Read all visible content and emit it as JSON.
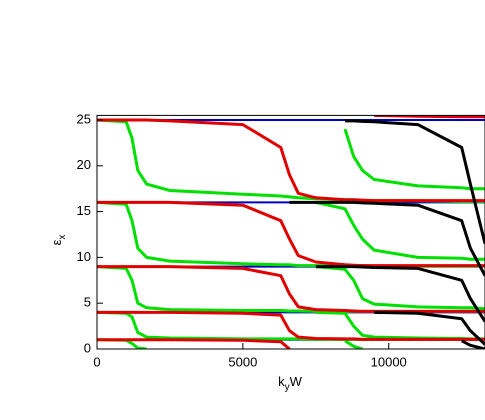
{
  "chart_data": {
    "type": "line",
    "x_label": {
      "parts": [
        "k",
        "y",
        "W"
      ]
    },
    "y_label": {
      "parts": [
        "ε",
        "x"
      ]
    },
    "xlim": [
      0,
      13300
    ],
    "ylim": [
      0,
      25.5
    ],
    "xticks": [
      0,
      5000,
      10000
    ],
    "yticks": [
      0,
      5,
      10,
      15,
      20,
      25
    ],
    "x": [
      0,
      1000,
      1200,
      1400,
      1700,
      2500,
      5000,
      6300,
      6600,
      6900,
      7500,
      8500,
      8800,
      9100,
      9500,
      11000,
      12500,
      12800,
      13300
    ],
    "series": [
      {
        "color": "#0000c0",
        "values": [
          25,
          25,
          25,
          25,
          25,
          25,
          25,
          25,
          25,
          25,
          25,
          25,
          25,
          25,
          25,
          25,
          25,
          25,
          25
        ]
      },
      {
        "color": "#0000c0",
        "values": [
          16,
          16,
          16,
          16,
          16,
          16,
          16,
          16,
          16,
          16,
          16,
          16,
          16,
          16,
          16,
          16,
          16,
          16,
          16
        ]
      },
      {
        "color": "#0000c0",
        "values": [
          9,
          9,
          9,
          9,
          9,
          9,
          9,
          9,
          9,
          9,
          9,
          9,
          9,
          9,
          9,
          9,
          9,
          9,
          9
        ]
      },
      {
        "color": "#0000c0",
        "values": [
          4,
          4,
          4,
          4,
          4,
          4,
          4,
          4,
          4,
          4,
          4,
          4,
          4,
          4,
          4,
          4,
          4,
          4,
          4
        ]
      },
      {
        "color": "#0000c0",
        "values": [
          1,
          1,
          1,
          1,
          1,
          1,
          1,
          1,
          1,
          1,
          1,
          1,
          1,
          1,
          1,
          1,
          1,
          1,
          1
        ]
      },
      {
        "color": "#00e000",
        "values": [
          25,
          24.8,
          23,
          19.5,
          18,
          17.3,
          16.9,
          16.7,
          16.6,
          16.5,
          16.4,
          16.3,
          16.3,
          16.2,
          16.2,
          16.2,
          16.1,
          16.1,
          16.1
        ]
      },
      {
        "color": "#00e000",
        "values": [
          16,
          15.8,
          14,
          11,
          10,
          9.6,
          9.3,
          9.2,
          9.2,
          9.1,
          9.1,
          9.1,
          9.1,
          9.1,
          9.05,
          9.05,
          9.05,
          9.05,
          9.05
        ]
      },
      {
        "color": "#00e000",
        "values": [
          9,
          8.8,
          7.5,
          5,
          4.5,
          4.3,
          4.2,
          4.2,
          4.15,
          4.15,
          4.1,
          4.1,
          4.1,
          4.1,
          4.1,
          4.1,
          4.1,
          4.1,
          4.1
        ]
      },
      {
        "color": "#00e000",
        "values": [
          4,
          3.9,
          3.5,
          1.8,
          1.3,
          1.2,
          1.1,
          1.1,
          1.1,
          1.1,
          1.05,
          1.05,
          1.05,
          1.05,
          1.05,
          1.05,
          1.05,
          1.05,
          1.05
        ]
      },
      {
        "color": "#00e000",
        "values": [
          1,
          0.95,
          0.6,
          0.1,
          0,
          null,
          null,
          null,
          null,
          null,
          null,
          null,
          null,
          null,
          null,
          null,
          null,
          null,
          null
        ]
      },
      {
        "color": "#00e000",
        "values": [
          null,
          null,
          null,
          null,
          null,
          null,
          null,
          null,
          null,
          null,
          null,
          24,
          21,
          19.5,
          18.5,
          17.8,
          17.6,
          17.5,
          17.5
        ]
      },
      {
        "color": "#00e000",
        "values": [
          null,
          null,
          null,
          null,
          null,
          null,
          null,
          null,
          null,
          null,
          16,
          15.3,
          13.5,
          12,
          10.8,
          10,
          9.9,
          9.8,
          9.8
        ]
      },
      {
        "color": "#00e000",
        "values": [
          null,
          null,
          null,
          null,
          null,
          null,
          null,
          null,
          null,
          null,
          9,
          8.7,
          7.5,
          5.5,
          4.9,
          4.6,
          4.5,
          4.5,
          4.4
        ]
      },
      {
        "color": "#00e000",
        "values": [
          null,
          null,
          null,
          null,
          null,
          null,
          null,
          null,
          null,
          null,
          4,
          3.9,
          2.5,
          1.5,
          1.3,
          1.2,
          1.15,
          1.1,
          1.1
        ]
      },
      {
        "color": "#00e000",
        "values": [
          null,
          null,
          null,
          null,
          null,
          null,
          null,
          null,
          null,
          null,
          null,
          0.9,
          0.3,
          0,
          null,
          null,
          null,
          null,
          null
        ]
      },
      {
        "color": "#e00000",
        "values": [
          25,
          25,
          25,
          25,
          25,
          24.9,
          24.5,
          22,
          19,
          17,
          16.5,
          16.3,
          16.3,
          16.25,
          16.2,
          16.2,
          16.2,
          16.2,
          16.2
        ]
      },
      {
        "color": "#e00000",
        "values": [
          16,
          16,
          16,
          16,
          16,
          16,
          15.7,
          14,
          12,
          10.2,
          9.5,
          9.2,
          9.15,
          9.1,
          9.1,
          9.1,
          9.1,
          9.1,
          9.1
        ]
      },
      {
        "color": "#e00000",
        "values": [
          9,
          9,
          9,
          9,
          9,
          9,
          8.8,
          8,
          6,
          4.6,
          4.3,
          4.2,
          4.15,
          4.1,
          4.1,
          4.1,
          4.1,
          4.1,
          4.1
        ]
      },
      {
        "color": "#e00000",
        "values": [
          4,
          4,
          4,
          4,
          4,
          4,
          3.9,
          3.7,
          2,
          1.3,
          1.15,
          1.1,
          1.1,
          1.05,
          1.05,
          1.05,
          1.05,
          1.05,
          1.05
        ]
      },
      {
        "color": "#e00000",
        "values": [
          1,
          1,
          1,
          1,
          1,
          1,
          0.95,
          0.8,
          0,
          null,
          null,
          null,
          null,
          null,
          null,
          null,
          null,
          null,
          null
        ]
      },
      {
        "color": "#e00000",
        "values": [
          null,
          null,
          null,
          null,
          null,
          null,
          null,
          null,
          null,
          null,
          null,
          null,
          null,
          null,
          25.5,
          25.4,
          25.35,
          25.35,
          25.35
        ]
      },
      {
        "color": "#000000",
        "values": [
          null,
          null,
          null,
          null,
          null,
          null,
          null,
          null,
          null,
          null,
          null,
          24.9,
          24.9,
          24.85,
          24.8,
          24.5,
          22,
          18,
          11.5
        ]
      },
      {
        "color": "#000000",
        "values": [
          null,
          null,
          null,
          null,
          null,
          null,
          null,
          null,
          16,
          16,
          16,
          16,
          16,
          15.95,
          15.9,
          15.7,
          14,
          11,
          8
        ]
      },
      {
        "color": "#000000",
        "values": [
          null,
          null,
          null,
          null,
          null,
          null,
          null,
          null,
          null,
          null,
          9,
          9,
          9,
          8.95,
          8.9,
          8.8,
          7.5,
          5.5,
          3
        ]
      },
      {
        "color": "#000000",
        "values": [
          null,
          null,
          null,
          null,
          null,
          null,
          null,
          null,
          null,
          null,
          null,
          null,
          null,
          null,
          4,
          3.9,
          3.3,
          2,
          0.5
        ]
      },
      {
        "color": "#000000",
        "values": [
          null,
          null,
          null,
          null,
          null,
          null,
          null,
          null,
          null,
          null,
          null,
          null,
          null,
          null,
          null,
          null,
          0.9,
          0.4,
          0
        ]
      }
    ]
  }
}
